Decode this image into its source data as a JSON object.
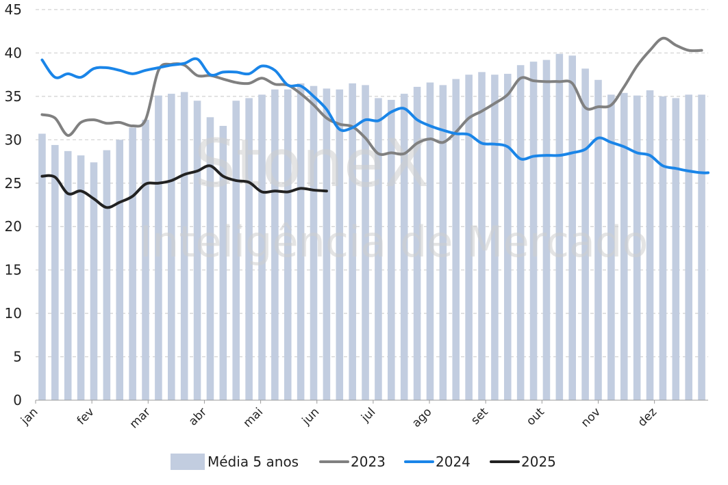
{
  "colors": {
    "bars": "#c2cde0",
    "s2023": "#808080",
    "s2024": "#1a85e8",
    "s2025": "#222222",
    "grid": "#d0d0d0"
  },
  "watermark": {
    "line1": "StoneX",
    "line2": "Inteligência de Mercado"
  },
  "chart_data": {
    "type": "bar",
    "ylim": [
      0,
      45
    ],
    "yticks": [
      0,
      5,
      10,
      15,
      20,
      25,
      30,
      35,
      40,
      45
    ],
    "months": [
      "jan",
      "fev",
      "mar",
      "abr",
      "mai",
      "jun",
      "jul",
      "ago",
      "set",
      "out",
      "nov",
      "dez"
    ],
    "weeks": 52,
    "grid": "horizontal dashed",
    "legend_position": "bottom",
    "bars": {
      "name": "Média 5 anos",
      "values": [
        30.7,
        29.4,
        28.7,
        28.2,
        27.4,
        28.8,
        30.0,
        31.4,
        32.3,
        35.1,
        35.3,
        35.5,
        34.5,
        32.6,
        31.6,
        34.5,
        34.8,
        35.2,
        35.8,
        35.8,
        36.5,
        36.2,
        35.9,
        35.8,
        36.5,
        36.3,
        34.8,
        34.6,
        35.3,
        36.1,
        36.6,
        36.3,
        37.0,
        37.5,
        37.8,
        37.5,
        37.6,
        38.6,
        39.0,
        39.2,
        39.9,
        39.7,
        38.2,
        36.9,
        35.2,
        35.4,
        35.1,
        35.7,
        35.0,
        34.8,
        35.2,
        35.2
      ]
    },
    "series": [
      {
        "name": "2023",
        "points": [
          [
            1,
            32.9
          ],
          [
            2,
            32.5
          ],
          [
            3,
            30.5
          ],
          [
            4,
            32.0
          ],
          [
            5,
            32.3
          ],
          [
            6,
            31.9
          ],
          [
            7,
            32.0
          ],
          [
            8,
            31.6
          ],
          [
            9,
            32.3
          ],
          [
            10,
            38.0
          ],
          [
            11,
            38.7
          ],
          [
            12,
            38.6
          ],
          [
            13,
            37.4
          ],
          [
            14,
            37.4
          ],
          [
            15,
            37.0
          ],
          [
            16,
            36.6
          ],
          [
            17,
            36.5
          ],
          [
            18,
            37.1
          ],
          [
            19,
            36.4
          ],
          [
            20,
            36.3
          ],
          [
            21,
            35.3
          ],
          [
            22,
            34.0
          ],
          [
            23,
            32.5
          ],
          [
            24,
            31.8
          ],
          [
            25,
            31.5
          ],
          [
            26,
            30.2
          ],
          [
            27,
            28.4
          ],
          [
            28,
            28.5
          ],
          [
            29,
            28.4
          ],
          [
            30,
            29.6
          ],
          [
            31,
            30.1
          ],
          [
            32,
            29.7
          ],
          [
            33,
            30.9
          ],
          [
            34,
            32.5
          ],
          [
            35,
            33.3
          ],
          [
            36,
            34.2
          ],
          [
            37,
            35.2
          ],
          [
            38,
            37.1
          ],
          [
            39,
            36.8
          ],
          [
            40,
            36.7
          ],
          [
            41,
            36.7
          ],
          [
            42,
            36.5
          ],
          [
            43,
            33.7
          ],
          [
            44,
            33.8
          ],
          [
            45,
            34.0
          ],
          [
            46,
            36.1
          ],
          [
            47,
            38.5
          ],
          [
            48,
            40.3
          ],
          [
            49,
            41.7
          ],
          [
            50,
            40.9
          ],
          [
            51,
            40.3
          ],
          [
            52,
            40.3
          ]
        ]
      },
      {
        "name": "2024",
        "points": [
          [
            1,
            39.2
          ],
          [
            2,
            37.2
          ],
          [
            3,
            37.6
          ],
          [
            4,
            37.2
          ],
          [
            5,
            38.2
          ],
          [
            6,
            38.3
          ],
          [
            7,
            38.0
          ],
          [
            8,
            37.6
          ],
          [
            9,
            38.0
          ],
          [
            10,
            38.3
          ],
          [
            11,
            38.6
          ],
          [
            12,
            38.8
          ],
          [
            13,
            39.3
          ],
          [
            14,
            37.5
          ],
          [
            15,
            37.8
          ],
          [
            16,
            37.8
          ],
          [
            17,
            37.6
          ],
          [
            18,
            38.5
          ],
          [
            19,
            38.0
          ],
          [
            20,
            36.3
          ],
          [
            21,
            36.2
          ],
          [
            22,
            35.0
          ],
          [
            23,
            33.5
          ],
          [
            24,
            31.2
          ],
          [
            25,
            31.4
          ],
          [
            26,
            32.3
          ],
          [
            27,
            32.2
          ],
          [
            28,
            33.2
          ],
          [
            29,
            33.6
          ],
          [
            30,
            32.3
          ],
          [
            31,
            31.6
          ],
          [
            32,
            31.1
          ],
          [
            33,
            30.7
          ],
          [
            34,
            30.6
          ],
          [
            35,
            29.6
          ],
          [
            36,
            29.5
          ],
          [
            37,
            29.2
          ],
          [
            38,
            27.8
          ],
          [
            39,
            28.1
          ],
          [
            40,
            28.2
          ],
          [
            41,
            28.2
          ],
          [
            42,
            28.5
          ],
          [
            43,
            28.9
          ],
          [
            44,
            30.2
          ],
          [
            45,
            29.7
          ],
          [
            46,
            29.2
          ],
          [
            47,
            28.5
          ],
          [
            48,
            28.2
          ],
          [
            49,
            27.0
          ],
          [
            50,
            26.7
          ],
          [
            51,
            26.4
          ],
          [
            52,
            26.2
          ],
          [
            53,
            26.2
          ]
        ]
      },
      {
        "name": "2025",
        "points": [
          [
            1,
            25.8
          ],
          [
            2,
            25.7
          ],
          [
            3,
            23.8
          ],
          [
            4,
            24.1
          ],
          [
            5,
            23.2
          ],
          [
            6,
            22.2
          ],
          [
            7,
            22.8
          ],
          [
            8,
            23.5
          ],
          [
            9,
            24.9
          ],
          [
            10,
            25.0
          ],
          [
            11,
            25.3
          ],
          [
            12,
            26.0
          ],
          [
            13,
            26.4
          ],
          [
            14,
            27.0
          ],
          [
            15,
            25.8
          ],
          [
            16,
            25.3
          ],
          [
            17,
            25.1
          ],
          [
            18,
            24.0
          ],
          [
            19,
            24.1
          ],
          [
            20,
            24.0
          ],
          [
            21,
            24.4
          ],
          [
            22,
            24.2
          ],
          [
            23,
            24.1
          ]
        ]
      }
    ]
  }
}
